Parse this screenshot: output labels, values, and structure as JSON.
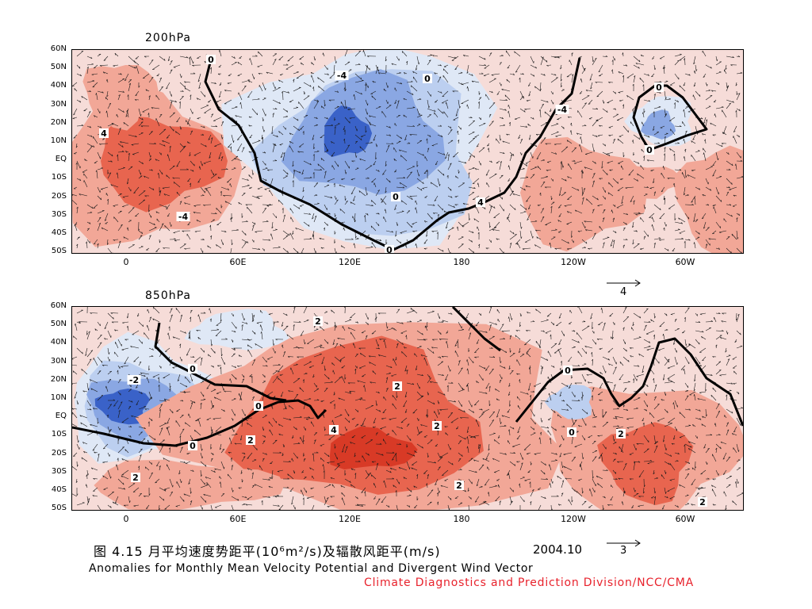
{
  "colors": {
    "positive_strong": "#d83a26",
    "positive_mid": "#e8654f",
    "positive_light": "#f2a797",
    "positive_faint": "#f6dcd8",
    "negative_faint": "#dfe8f6",
    "negative_light": "#bccff0",
    "negative_mid": "#8aa7e3",
    "negative_strong": "#3a62c8",
    "zero_line": "#000000",
    "credit_text": "#e8222c"
  },
  "y_ticks": [
    "60N",
    "50N",
    "40N",
    "30N",
    "20N",
    "10N",
    "EQ",
    "10S",
    "20S",
    "30S",
    "40S",
    "50S"
  ],
  "x_ticks": [
    "0",
    "60E",
    "120E",
    "180",
    "120W",
    "60W"
  ],
  "panels": [
    {
      "level_label": "200hPa",
      "reference_vector_value": "4",
      "contour_labels": [
        "0",
        "4",
        "-4",
        "-4",
        "0",
        "0",
        "4",
        "-4",
        "0",
        "0",
        "0"
      ]
    },
    {
      "level_label": "850hPa",
      "reference_vector_value": "3",
      "contour_labels": [
        "2",
        "-2",
        "0",
        "0",
        "2",
        "2",
        "4",
        "2",
        "2",
        "2",
        "0",
        "0",
        "0",
        "2",
        "2"
      ]
    }
  ],
  "caption": {
    "chinese_title": "图 4.15  月平均速度势距平(10⁶m²/s)及辐散风距平(m/s)",
    "date": "2004.10",
    "english_title": "Anomalies for Monthly Mean Velocity Potential and Divergent Wind Vector",
    "credit": "Climate Diagnostics and Prediction Division/NCC/CMA"
  }
}
